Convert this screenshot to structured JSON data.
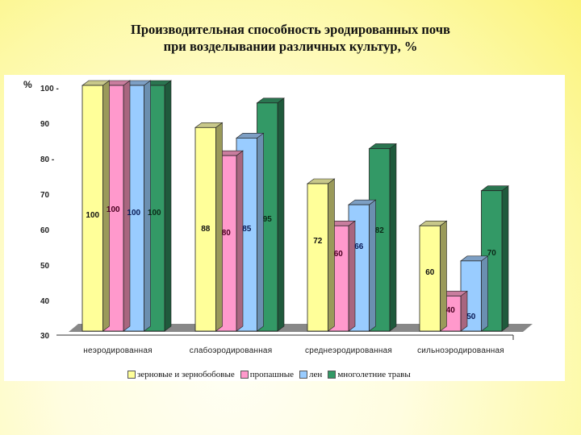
{
  "title_line1": "Производительная способность эродированных почв",
  "title_line2": "при возделывании различных культур, %",
  "y_unit": "%",
  "y_ticks": [
    "100 -",
    "90",
    "80 -",
    "70",
    "60",
    "50",
    "40",
    "30"
  ],
  "x_labels": [
    "неэродированная",
    "слабоэродированная",
    "среднеэродированная",
    "сильноэродированная"
  ],
  "legend": [
    {
      "label": "зерновые и зернобобовые",
      "color": "#ffff99"
    },
    {
      "label": "пропашные",
      "color": "#ff99cc"
    },
    {
      "label": "лен",
      "color": "#99ccff"
    },
    {
      "label": "многолетние травы",
      "color": "#339966"
    }
  ],
  "chart_data": {
    "type": "bar",
    "title": "Производительная способность эродированных почв при возделывании различных культур, %",
    "xlabel": "",
    "ylabel": "%",
    "ylim": [
      30,
      100
    ],
    "yticks": [
      30,
      40,
      50,
      60,
      70,
      80,
      90,
      100
    ],
    "grid": false,
    "legend_position": "bottom",
    "style": "3d-clustered-column",
    "categories": [
      "неэродированная",
      "слабоэродированная",
      "среднеэродированная",
      "сильноэродированная"
    ],
    "series": [
      {
        "name": "зерновые и зернобобовые",
        "color": "#ffff99",
        "values": [
          100,
          88,
          72,
          60
        ]
      },
      {
        "name": "пропашные",
        "color": "#ff99cc",
        "values": [
          100,
          80,
          60,
          40
        ]
      },
      {
        "name": "лен",
        "color": "#99ccff",
        "values": [
          100,
          85,
          66,
          50
        ]
      },
      {
        "name": "многолетние травы",
        "color": "#339966",
        "values": [
          100,
          95,
          82,
          70
        ]
      }
    ]
  }
}
